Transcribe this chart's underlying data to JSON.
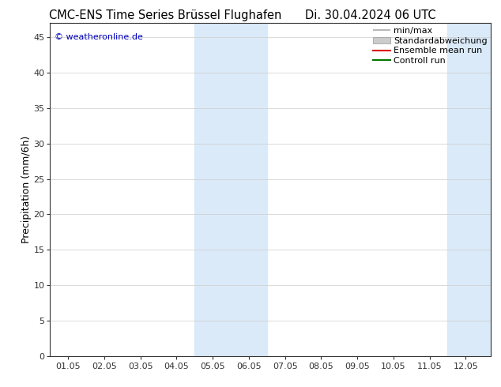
{
  "title_left": "CMC-ENS Time Series Brüssel Flughafen",
  "title_right": "Di. 30.04.2024 06 UTC",
  "ylabel": "Precipitation (mm/6h)",
  "ylim": [
    0,
    47
  ],
  "yticks": [
    0,
    5,
    10,
    15,
    20,
    25,
    30,
    35,
    40,
    45
  ],
  "xlabels": [
    "01.05",
    "02.05",
    "03.05",
    "04.05",
    "05.05",
    "06.05",
    "07.05",
    "08.05",
    "09.05",
    "10.05",
    "11.05",
    "12.05"
  ],
  "xvals": [
    0,
    1,
    2,
    3,
    4,
    5,
    6,
    7,
    8,
    9,
    10,
    11
  ],
  "xlim": [
    -0.5,
    11.7
  ],
  "shaded_regions": [
    [
      3.5,
      4.5
    ],
    [
      4.5,
      5.5
    ],
    [
      10.5,
      11.5
    ],
    [
      11.5,
      12.2
    ]
  ],
  "shade_colors": [
    "#daeaf8",
    "#daeaf8",
    "#daeaf8",
    "#daeaf8"
  ],
  "copyright_text": "© weatheronline.de",
  "copyright_color": "#0000bb",
  "legend_entries": [
    "min/max",
    "Standardabweichung",
    "Ensemble mean run",
    "Controll run"
  ],
  "legend_line_colors": [
    "#aaaaaa",
    "#cccccc",
    "#dd0000",
    "#007700"
  ],
  "background_color": "#ffffff",
  "plot_bg_color": "#ffffff",
  "grid_color": "#cccccc",
  "title_fontsize": 10.5,
  "axis_label_fontsize": 9,
  "tick_fontsize": 8,
  "legend_fontsize": 8
}
